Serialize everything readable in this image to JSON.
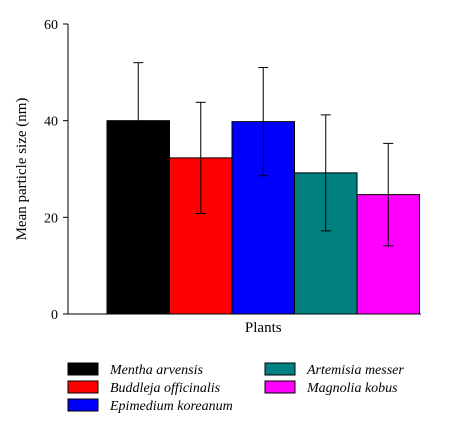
{
  "chart_data": {
    "type": "bar",
    "xlabel": "Plants",
    "ylabel": "Mean particle size (nm)",
    "ylim": [
      0,
      60
    ],
    "yticks": [
      0,
      20,
      40,
      60
    ],
    "grid": false,
    "legend_position": "bottom",
    "series": [
      {
        "name": "Mentha arvensis",
        "value": 40,
        "error": 12,
        "color": "#000000"
      },
      {
        "name": "Buddleja officinalis",
        "value": 32.3,
        "error": 11.5,
        "color": "#ff0000"
      },
      {
        "name": "Epimedium koreanum",
        "value": 39.8,
        "error": 11.2,
        "color": "#0000ff"
      },
      {
        "name": "Artemisia messer",
        "value": 29.2,
        "error": 12,
        "color": "#008080"
      },
      {
        "name": "Magnolia kobus",
        "value": 24.7,
        "error": 10.6,
        "color": "#ff00ff"
      }
    ]
  }
}
